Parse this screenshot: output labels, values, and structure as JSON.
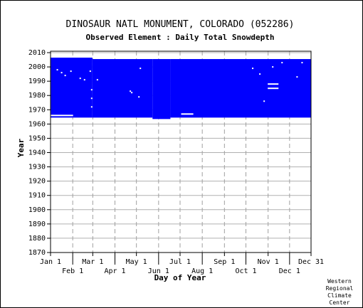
{
  "chart_data": {
    "type": "heatmap",
    "title": "DINOSAUR NATL MONUMENT, COLORADO   (052286)",
    "subtitle": "Observed Element : Daily Total Snowdepth",
    "xlabel": "Day of Year",
    "ylabel": "Year",
    "credit": [
      "Western",
      "Regional",
      "Climate",
      "Center"
    ],
    "xlim": [
      1,
      365
    ],
    "ylim": [
      1870,
      2011
    ],
    "x_ticks_top": [
      {
        "label": "Jan 1",
        "day": 1
      },
      {
        "label": "Mar 1",
        "day": 60
      },
      {
        "label": "May 1",
        "day": 121
      },
      {
        "label": "Jul 1",
        "day": 182
      },
      {
        "label": "Sep 1",
        "day": 244
      },
      {
        "label": "Nov 1",
        "day": 305
      },
      {
        "label": "Dec 31",
        "day": 365
      }
    ],
    "x_ticks_bottom": [
      {
        "label": "Feb 1",
        "day": 32
      },
      {
        "label": "Apr 1",
        "day": 91
      },
      {
        "label": "Jun 1",
        "day": 152
      },
      {
        "label": "Aug 1",
        "day": 213
      },
      {
        "label": "Oct 1",
        "day": 274
      },
      {
        "label": "Dec 1",
        "day": 335
      }
    ],
    "y_ticks": [
      1870,
      1880,
      1890,
      1900,
      1910,
      1920,
      1930,
      1940,
      1950,
      1960,
      1970,
      1980,
      1990,
      2000,
      2010
    ],
    "grid": true,
    "data_color": "#0000ff",
    "coverage_blocks": [
      {
        "day_start": 1,
        "day_end": 59,
        "year_start": 1965,
        "year_end": 2006
      },
      {
        "day_start": 60,
        "day_end": 143,
        "year_start": 1965,
        "year_end": 2005
      },
      {
        "day_start": 144,
        "day_end": 168,
        "year_start": 1964,
        "year_end": 2005
      },
      {
        "day_start": 169,
        "day_end": 365,
        "year_start": 1965,
        "year_end": 2005
      }
    ],
    "missing_segments": [
      {
        "day_start": 1,
        "day_end": 32,
        "year": 1966
      },
      {
        "day_start": 184,
        "day_end": 200,
        "year": 1967
      },
      {
        "day_start": 305,
        "day_end": 319,
        "year": 1988
      },
      {
        "day_start": 305,
        "day_end": 319,
        "year": 1985
      },
      {
        "day_start": 58,
        "day_end": 59,
        "year": 1972
      },
      {
        "day_start": 58,
        "day_end": 59,
        "year": 1978
      },
      {
        "day_start": 58,
        "day_end": 59,
        "year": 1984
      },
      {
        "day_start": 10,
        "day_end": 11,
        "year": 1998
      },
      {
        "day_start": 16,
        "day_end": 17,
        "year": 1996
      },
      {
        "day_start": 21,
        "day_end": 22,
        "year": 1994
      },
      {
        "day_start": 29,
        "day_end": 30,
        "year": 1997
      },
      {
        "day_start": 42,
        "day_end": 43,
        "year": 1992
      },
      {
        "day_start": 48,
        "day_end": 49,
        "year": 1991
      },
      {
        "day_start": 56,
        "day_end": 57,
        "year": 1997
      },
      {
        "day_start": 66,
        "day_end": 67,
        "year": 1991
      },
      {
        "day_start": 112,
        "day_end": 113,
        "year": 1983
      },
      {
        "day_start": 114,
        "day_end": 115,
        "year": 1982
      },
      {
        "day_start": 124,
        "day_end": 125,
        "year": 1979
      },
      {
        "day_start": 126,
        "day_end": 127,
        "year": 1999
      },
      {
        "day_start": 283,
        "day_end": 284,
        "year": 1999
      },
      {
        "day_start": 293,
        "day_end": 294,
        "year": 1995
      },
      {
        "day_start": 299,
        "day_end": 300,
        "year": 1976
      },
      {
        "day_start": 311,
        "day_end": 312,
        "year": 2000
      },
      {
        "day_start": 324,
        "day_end": 325,
        "year": 2003
      },
      {
        "day_start": 345,
        "day_end": 346,
        "year": 1993
      },
      {
        "day_start": 352,
        "day_end": 353,
        "year": 2003
      }
    ]
  }
}
